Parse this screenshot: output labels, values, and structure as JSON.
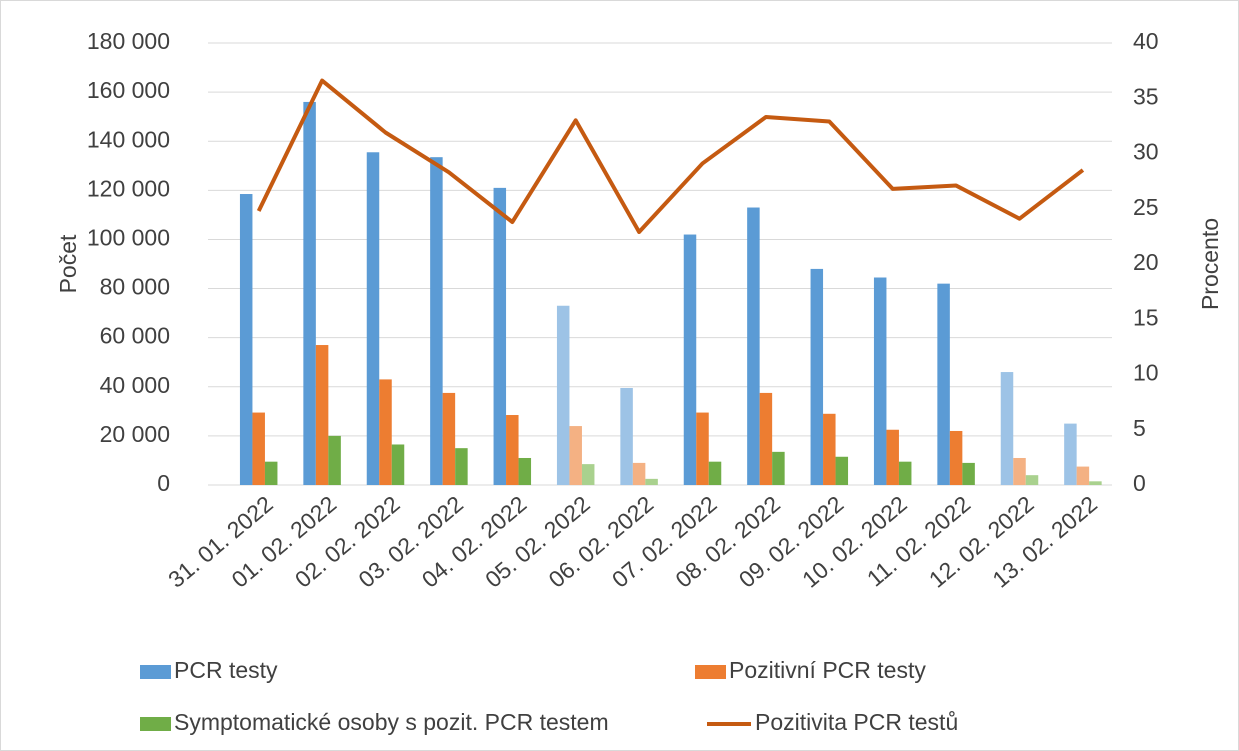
{
  "chart_data": {
    "type": "bar",
    "y_label": "Počet",
    "y2_label": "Procento",
    "categories": [
      "31. 01. 2022",
      "01. 02. 2022",
      "02. 02. 2022",
      "03. 02. 2022",
      "04. 02. 2022",
      "05. 02. 2022",
      "06. 02. 2022",
      "07. 02. 2022",
      "08. 02. 2022",
      "09. 02. 2022",
      "10. 02. 2022",
      "11. 02. 2022",
      "12. 02. 2022",
      "13. 02. 2022"
    ],
    "ylim": [
      0,
      180000
    ],
    "yticks": [
      0,
      {
        "value": 20000,
        "label": "20 000"
      },
      {
        "value": 40000,
        "label": "40 000"
      },
      {
        "value": 60000,
        "label": "60 000"
      },
      {
        "value": 80000,
        "label": "80 000"
      },
      {
        "value": 100000,
        "label": "100 000"
      },
      {
        "value": 120000,
        "label": "120 000"
      },
      {
        "value": 140000,
        "label": "140 000"
      },
      {
        "value": 160000,
        "label": "160 000"
      },
      {
        "value": 180000,
        "label": "180 000"
      }
    ],
    "y2lim": [
      0,
      40
    ],
    "y2ticks": [
      0,
      5,
      10,
      15,
      20,
      25,
      30,
      35,
      40
    ],
    "grid": true,
    "legend": "bottom",
    "series": [
      {
        "name": "PCR testy",
        "type": "bar",
        "color": "#5b9bd5",
        "point_colors": [
          "#5b9bd5",
          "#5b9bd5",
          "#5b9bd5",
          "#5b9bd5",
          "#5b9bd5",
          "#9dc3e6",
          "#9dc3e6",
          "#5b9bd5",
          "#5b9bd5",
          "#5b9bd5",
          "#5b9bd5",
          "#5b9bd5",
          "#9dc3e6",
          "#9dc3e6"
        ],
        "values": [
          118500,
          156000,
          135500,
          133500,
          121000,
          73000,
          39500,
          102000,
          113000,
          88000,
          84500,
          82000,
          46000,
          25000
        ]
      },
      {
        "name": "Pozitivní PCR testy",
        "type": "bar",
        "color": "#ed7d31",
        "point_colors": [
          "#ed7d31",
          "#ed7d31",
          "#ed7d31",
          "#ed7d31",
          "#ed7d31",
          "#f4b183",
          "#f4b183",
          "#ed7d31",
          "#ed7d31",
          "#ed7d31",
          "#ed7d31",
          "#ed7d31",
          "#f4b183",
          "#f4b183"
        ],
        "values": [
          29500,
          57000,
          43000,
          37500,
          28500,
          24000,
          9000,
          29500,
          37500,
          29000,
          22500,
          22000,
          11000,
          7500
        ]
      },
      {
        "name": "Symptomatické osoby s pozit. PCR testem",
        "type": "bar",
        "color": "#70ad47",
        "point_colors": [
          "#70ad47",
          "#70ad47",
          "#70ad47",
          "#70ad47",
          "#70ad47",
          "#a9d18e",
          "#a9d18e",
          "#70ad47",
          "#70ad47",
          "#70ad47",
          "#70ad47",
          "#70ad47",
          "#a9d18e",
          "#a9d18e"
        ],
        "values": [
          9500,
          20000,
          16500,
          15000,
          11000,
          8500,
          2500,
          9500,
          13500,
          11500,
          9500,
          9000,
          4000,
          1500
        ]
      },
      {
        "name": "Pozitivita PCR testů",
        "type": "line",
        "axis": "y2",
        "color": "#c55a11",
        "values": [
          24.8,
          36.6,
          31.9,
          28.3,
          23.8,
          33.0,
          22.9,
          29.1,
          33.3,
          32.9,
          26.8,
          27.1,
          24.1,
          28.5
        ]
      }
    ]
  }
}
